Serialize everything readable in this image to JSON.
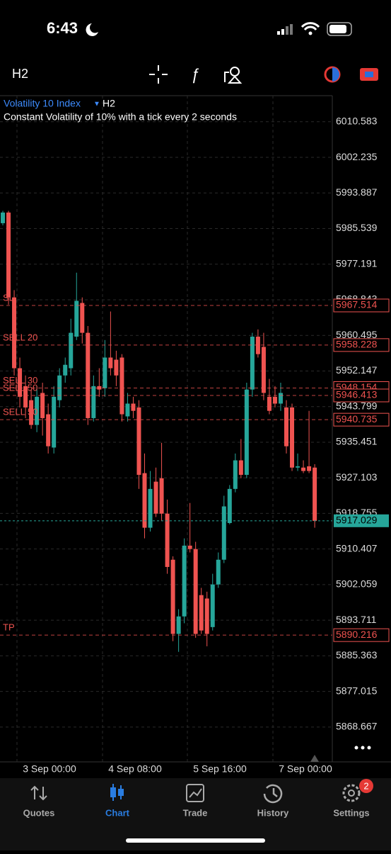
{
  "status_bar": {
    "time": "6:43"
  },
  "chart_data": {
    "type": "candlestick",
    "timeframe": "H2",
    "symbol": "Volatility 10 Index",
    "description": "Constant Volatility of 10% with a tick every 2 seconds",
    "up_color": "#26a69a",
    "down_color": "#ef5350",
    "open": [
      5986.8,
      5989.3,
      5969.4,
      5952.8,
      5948.6,
      5945.3,
      5939.5,
      5947.0,
      5942.0,
      5934.2,
      5945.3,
      5951.1,
      5952.8,
      5960.2,
      5968.1,
      5961.1,
      5941.1,
      5948.6,
      5948.1,
      5955.3,
      5954.8,
      5955.3,
      5941.5,
      5944.5,
      5943.6,
      5928.2,
      5915.4,
      5926.2,
      5927.0,
      5918.7,
      5907.9,
      5890.5,
      5894.6,
      5911.2,
      5910.4,
      5899.6,
      5898.8,
      5892.1,
      5902.1,
      5907.9,
      5916.5,
      5924.5,
      5931.2,
      5927.8,
      5947.8,
      5960.2,
      5957.8,
      5946.1,
      5946.1,
      5944.5,
      5943.6,
      5943.6,
      5929.5,
      5929.5,
      5929.8,
      5929.5
    ],
    "high": [
      5989.7,
      5989.7,
      5971.1,
      5955.3,
      5951.1,
      5947.8,
      5948.6,
      5949.4,
      5944.5,
      5948.6,
      5952.8,
      5955.3,
      5964.4,
      5975.2,
      5969.4,
      5962.7,
      5951.1,
      5952.8,
      5959.4,
      5966.1,
      5956.9,
      5956.1,
      5947.0,
      5946.1,
      5945.3,
      5932.8,
      5928.7,
      5929.5,
      5935.3,
      5922.0,
      5908.7,
      5896.3,
      5912.9,
      5921.2,
      5912.1,
      5901.3,
      5900.4,
      5904.6,
      5909.6,
      5922.9,
      5925.4,
      5932.8,
      5936.2,
      5949.4,
      5961.1,
      5961.9,
      5961.1,
      5950.3,
      5948.6,
      5949.4,
      5945.3,
      5944.5,
      5932.8,
      5931.2,
      5942.8,
      5930.3
    ],
    "low": [
      5986.3,
      5967.7,
      5951.1,
      5943.6,
      5941.1,
      5938.6,
      5937.8,
      5937.0,
      5932.8,
      5932.8,
      5943.6,
      5949.4,
      5951.1,
      5959.4,
      5958.6,
      5939.5,
      5940.3,
      5946.1,
      5946.1,
      5951.1,
      5948.6,
      5940.3,
      5940.3,
      5941.1,
      5924.5,
      5912.9,
      5914.5,
      5917.9,
      5917.0,
      5904.6,
      5888.8,
      5886.3,
      5893.0,
      5909.6,
      5889.6,
      5890.5,
      5887.6,
      5891.3,
      5901.3,
      5907.1,
      5916.2,
      5923.7,
      5927.0,
      5927.0,
      5946.1,
      5955.3,
      5945.3,
      5942.0,
      5943.6,
      5942.8,
      5932.8,
      5928.7,
      5928.7,
      5928.2,
      5928.2,
      5915.4
    ],
    "close": [
      5989.3,
      5969.4,
      5952.8,
      5946.1,
      5943.6,
      5939.5,
      5946.1,
      5941.1,
      5934.5,
      5946.1,
      5951.1,
      5953.6,
      5961.1,
      5968.6,
      5961.1,
      5941.1,
      5948.6,
      5947.8,
      5955.3,
      5952.8,
      5951.1,
      5942.0,
      5944.5,
      5942.8,
      5927.8,
      5915.4,
      5924.5,
      5918.7,
      5918.7,
      5906.2,
      5890.5,
      5894.6,
      5911.2,
      5910.4,
      5890.5,
      5891.3,
      5890.5,
      5902.1,
      5907.9,
      5920.4,
      5924.5,
      5931.2,
      5927.8,
      5947.8,
      5960.2,
      5956.1,
      5947.0,
      5942.8,
      5944.5,
      5947.0,
      5934.5,
      5929.5,
      5929.8,
      5928.7,
      5928.7,
      5917.0
    ],
    "ylim": [
      5860.5,
      6016.7
    ],
    "yticks": [
      6010.583,
      6002.235,
      5993.887,
      5985.539,
      5977.191,
      5968.843,
      5960.495,
      5952.147,
      5943.799,
      5935.451,
      5927.103,
      5918.755,
      5910.407,
      5902.059,
      5893.711,
      5885.363,
      5877.015,
      5868.667
    ],
    "grid": true,
    "levels": [
      {
        "label": "SL",
        "price": 5967.514
      },
      {
        "label": "SELL 20",
        "price": 5958.228
      },
      {
        "label": "SELL 30",
        "price": 5948.154
      },
      {
        "label": "SELL 50",
        "price": 5946.413
      },
      {
        "label": "SELL 50",
        "price": 5940.735
      },
      {
        "label": "TP",
        "price": 5890.216
      }
    ],
    "current_price": 5917.029,
    "time_labels": [
      "3 Sep 00:00",
      "4 Sep 08:00",
      "5 Sep 16:00",
      "7 Sep 00:00"
    ]
  },
  "tabs": [
    {
      "label": "Quotes"
    },
    {
      "label": "Chart"
    },
    {
      "label": "Trade"
    },
    {
      "label": "History"
    },
    {
      "label": "Settings"
    }
  ],
  "settings_badge": 2
}
